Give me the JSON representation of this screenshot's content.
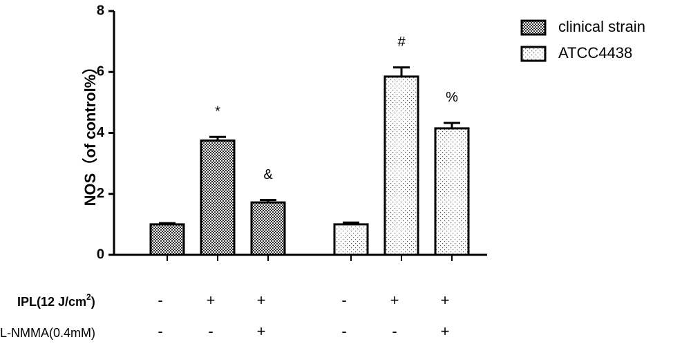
{
  "chart_data": {
    "type": "bar",
    "y_label": "NOS（of control%）",
    "ylim": [
      0,
      8
    ],
    "yticks": [
      0,
      2,
      4,
      6,
      8
    ],
    "series": [
      {
        "name": "clinical strain",
        "pattern": "checker",
        "color": "#000000",
        "values": [
          1.0,
          3.75,
          1.72
        ],
        "errors": [
          0.04,
          0.12,
          0.08
        ],
        "annotations": [
          null,
          "*",
          "&"
        ]
      },
      {
        "name": "ATCC4438",
        "pattern": "dots",
        "color": "#000000",
        "values": [
          1.0,
          5.85,
          4.15
        ],
        "errors": [
          0.06,
          0.3,
          0.18
        ],
        "annotations": [
          null,
          "#",
          "%"
        ]
      }
    ],
    "legend": "top-right",
    "treatments": [
      {
        "label_parts": [
          "IPL(12 J/cm",
          "2",
          ")"
        ],
        "bold": true,
        "signs": [
          "-",
          "+",
          "+",
          "-",
          "+",
          "+"
        ]
      },
      {
        "label_parts": [
          "L-NMMA(0.4mM)"
        ],
        "bold": false,
        "signs": [
          "-",
          "-",
          "+",
          "-",
          "-",
          "+"
        ]
      }
    ]
  }
}
